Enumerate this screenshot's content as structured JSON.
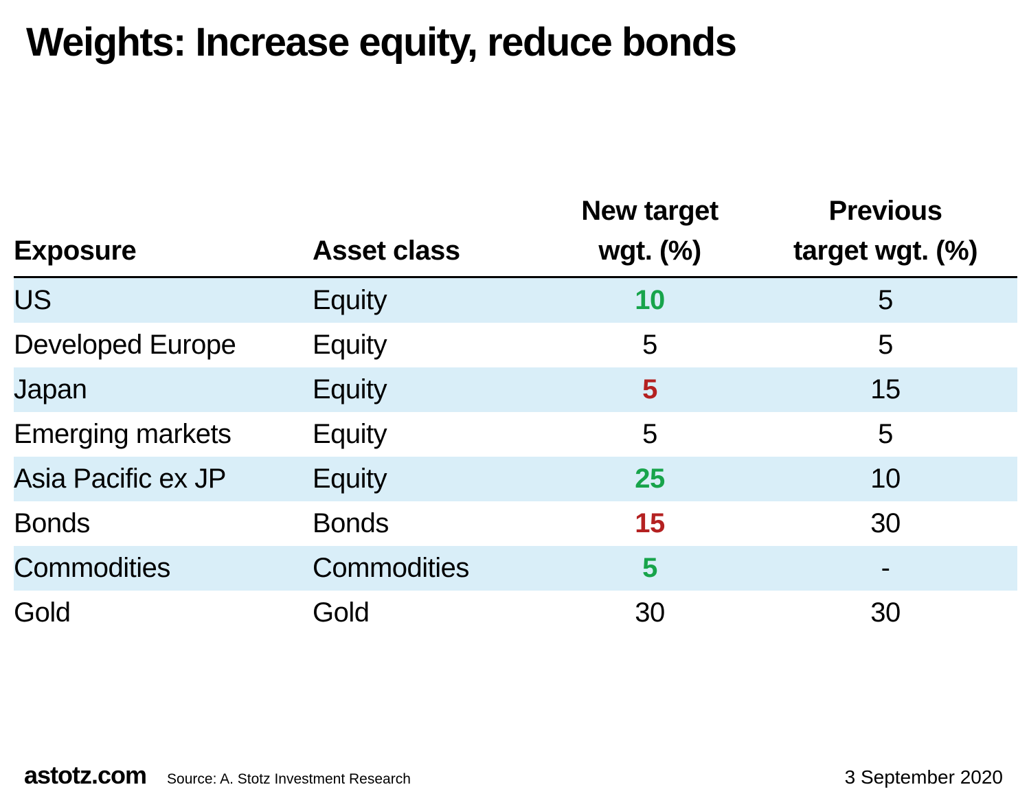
{
  "title": "Weights: Increase equity, reduce bonds",
  "table": {
    "header": {
      "exposure": "Exposure",
      "asset_class": "Asset class",
      "new_target_line1": "New target",
      "new_target_line2": "wgt. (%)",
      "previous_line1": "Previous",
      "previous_line2": "target wgt. (%)"
    },
    "rows": [
      {
        "exposure": "US",
        "asset_class": "Equity",
        "new_target": "10",
        "new_color": "green",
        "previous": "5",
        "highlighted": true
      },
      {
        "exposure": "Developed Europe",
        "asset_class": "Equity",
        "new_target": "5",
        "new_color": "black",
        "previous": "5",
        "highlighted": false
      },
      {
        "exposure": "Japan",
        "asset_class": "Equity",
        "new_target": "5",
        "new_color": "red",
        "previous": "15",
        "highlighted": true
      },
      {
        "exposure": "Emerging markets",
        "asset_class": "Equity",
        "new_target": "5",
        "new_color": "black",
        "previous": "5",
        "highlighted": false
      },
      {
        "exposure": "Asia Pacific ex JP",
        "asset_class": "Equity",
        "new_target": "25",
        "new_color": "green",
        "previous": "10",
        "highlighted": true
      },
      {
        "exposure": "Bonds",
        "asset_class": "Bonds",
        "new_target": "15",
        "new_color": "red",
        "previous": "30",
        "highlighted": false
      },
      {
        "exposure": "Commodities",
        "asset_class": "Commodities",
        "new_target": "5",
        "new_color": "green",
        "previous": "-",
        "highlighted": true
      },
      {
        "exposure": "Gold",
        "asset_class": "Gold",
        "new_target": "30",
        "new_color": "black",
        "previous": "30",
        "highlighted": false
      }
    ]
  },
  "footer": {
    "brand": "astotz.com",
    "source": "Source: A. Stotz Investment Research",
    "date": "3 September 2020"
  },
  "colors": {
    "row_highlight": "#d9eef8",
    "increase_green": "#17a44b",
    "decrease_red": "#b42121",
    "text": "#000000"
  },
  "chart_data": {
    "type": "table",
    "title": "Weights: Increase equity, reduce bonds",
    "columns": [
      "Exposure",
      "Asset class",
      "New target wgt. (%)",
      "Previous target wgt. (%)"
    ],
    "rows": [
      [
        "US",
        "Equity",
        10,
        5
      ],
      [
        "Developed Europe",
        "Equity",
        5,
        5
      ],
      [
        "Japan",
        "Equity",
        5,
        15
      ],
      [
        "Emerging markets",
        "Equity",
        5,
        5
      ],
      [
        "Asia Pacific ex JP",
        "Equity",
        25,
        10
      ],
      [
        "Bonds",
        "Bonds",
        15,
        30
      ],
      [
        "Commodities",
        "Commodities",
        5,
        "-"
      ],
      [
        "Gold",
        "Gold",
        30,
        30
      ]
    ],
    "notes": "Green bold = increased/new weight; dark-red bold = reduced weight; light-blue stripes on rows 1,3,5,7"
  }
}
